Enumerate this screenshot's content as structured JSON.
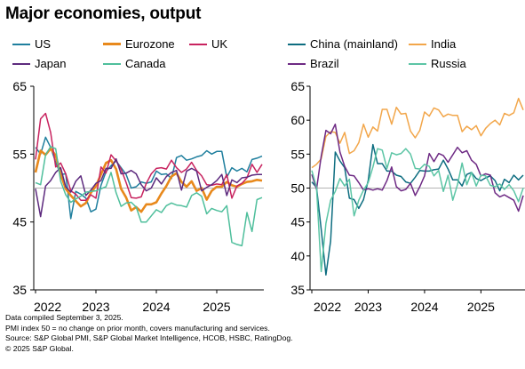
{
  "title": "Major economies,  output",
  "colors": {
    "US": "#1f7f9e",
    "Eurozone": "#e8891c",
    "UK": "#c8235f",
    "Japan": "#5d2a7e",
    "Canada": "#4fbf9c",
    "China (mainland)": "#0d6d80",
    "India": "#f2a64a",
    "Brazil": "#6e2a84",
    "Russia": "#5cc5a5"
  },
  "legend_left": [
    {
      "name": "US"
    },
    {
      "name": "Eurozone"
    },
    {
      "name": "UK"
    },
    {
      "name": "Japan"
    },
    {
      "name": "Canada"
    }
  ],
  "legend_right": [
    {
      "name": "China (mainland)"
    },
    {
      "name": "India"
    },
    {
      "name": "Brazil"
    },
    {
      "name": "Russia"
    }
  ],
  "footer": {
    "line1": "Data compiled September 3, 2025.",
    "line2": "PMI index 50 = no change on prior month, covers manufacturing and services.",
    "line3": "Source: S&P Global PMI, S&P Global Market Intelligence, HCOB, HSBC, RatingDog.",
    "line4": "© 2025 S&P Global."
  },
  "chart_data": [
    {
      "type": "line",
      "title": "",
      "xlabel": "",
      "ylabel": "",
      "ylim": [
        35,
        65
      ],
      "yticks": [
        35,
        45,
        55,
        65
      ],
      "xticks": [
        "2022",
        "2023",
        "2024",
        "2025"
      ],
      "xstart": 2022.0,
      "xend": 2025.667,
      "series": [
        {
          "name": "US",
          "values": [
            56,
            55,
            57.5,
            56,
            53.8,
            52,
            52.1,
            45.5,
            49.5,
            49.1,
            48.5,
            46.5,
            46.9,
            50.4,
            52.4,
            53.3,
            54,
            53,
            52,
            50,
            50.2,
            50.9,
            50.7,
            50.9,
            52.5,
            52,
            52.1,
            51.4,
            54.5,
            54.8,
            54.1,
            54.3,
            54.6,
            54.8,
            55.5,
            55,
            55.4,
            55.4,
            51.6,
            53,
            52.5,
            52.9,
            52.4,
            54.2,
            54.4,
            54.7
          ]
        },
        {
          "name": "Eurozone",
          "values": [
            52.3,
            55.5,
            54.9,
            55.8,
            54.8,
            52,
            49.9,
            48.9,
            48.1,
            47.3,
            47.8,
            49.3,
            50.3,
            52,
            53.7,
            54.1,
            52.8,
            49.9,
            48.6,
            46.7,
            47.2,
            46.5,
            47.6,
            47.6,
            47.9,
            49.2,
            50.3,
            51.7,
            52.2,
            50.9,
            50.2,
            51,
            49.6,
            50,
            48.3,
            49.6,
            50.2,
            50.2,
            50.9,
            50.4,
            50.2,
            50.6,
            50.9,
            51,
            51.2,
            51.1
          ]
        },
        {
          "name": "UK",
          "values": [
            54.2,
            60.2,
            61,
            58.2,
            53.1,
            53.7,
            52.1,
            49.6,
            49.1,
            48.2,
            48.2,
            49,
            48.5,
            53.1,
            52.2,
            54.9,
            54,
            52.8,
            50.8,
            48.6,
            48.5,
            48.7,
            50.7,
            52.1,
            52.9,
            53,
            52.8,
            54.1,
            53,
            52.3,
            52.8,
            53.8,
            52.6,
            51.8,
            50.5,
            50.4,
            50.6,
            50.5,
            52,
            48.5,
            50.3,
            50.7,
            51.5,
            53.5,
            52.3,
            53.5
          ]
        },
        {
          "name": "Japan",
          "values": [
            49.9,
            45.8,
            50.3,
            51.1,
            52.3,
            53,
            50.2,
            49.4,
            51,
            51.8,
            48.9,
            49.7,
            50.7,
            51.1,
            52.9,
            52.9,
            54.3,
            52.1,
            52.2,
            52.6,
            52.1,
            50.5,
            49.6,
            50,
            51.5,
            50.6,
            51.7,
            52.3,
            52.6,
            49.7,
            52.5,
            52.9,
            52.5,
            49.6,
            50.1,
            50.5,
            51.1,
            52,
            48.9,
            51.2,
            50.8,
            51.5,
            51.6,
            51.9,
            52,
            52
          ]
        },
        {
          "name": "Canada",
          "values": [
            50.8,
            50.5,
            54.9,
            56.1,
            55.8,
            51,
            49,
            47.9,
            48.4,
            48.8,
            49.4,
            49.5,
            49.6,
            49.9,
            50.2,
            52.3,
            49.3,
            47.3,
            47.8,
            47.9,
            47.2,
            45,
            45,
            45.9,
            46.8,
            46.4,
            47.4,
            47.8,
            47.5,
            47.4,
            47.2,
            48.9,
            49.3,
            48.8,
            46.2,
            47,
            46.7,
            46.5,
            47.4,
            42,
            41.7,
            41.5,
            46.4,
            43.6,
            48.3,
            48.6
          ]
        }
      ]
    },
    {
      "type": "line",
      "title": "",
      "xlabel": "",
      "ylabel": "",
      "ylim": [
        35,
        65
      ],
      "yticks": [
        35,
        40,
        45,
        50,
        55,
        60,
        65
      ],
      "xticks": [
        "2022",
        "2023",
        "2024",
        "2025"
      ],
      "xstart": 2022.0,
      "xend": 2025.667,
      "series": [
        {
          "name": "China (mainland)",
          "values": [
            50.9,
            50.1,
            43.9,
            37.2,
            42.2,
            55.3,
            54,
            53,
            48.5,
            48.3,
            47,
            48.3,
            51.1,
            56.4,
            53.6,
            53.6,
            52.5,
            52.5,
            51.9,
            51.7,
            50.9,
            50.7,
            51.6,
            52.6,
            52.5,
            52.5,
            52.7,
            52.8,
            54.1,
            52.8,
            51.2,
            51.2,
            50.3,
            52,
            52.3,
            51.4,
            51.1,
            51.5,
            51.8,
            51.1,
            49.6,
            51.3,
            50.8,
            51.9,
            51.2,
            51.9
          ]
        },
        {
          "name": "India",
          "values": [
            53,
            53.5,
            54.3,
            57.6,
            58.3,
            58.2,
            56.6,
            58.2,
            55.1,
            55.5,
            56.7,
            59.4,
            57.5,
            59,
            58.4,
            61.6,
            61.6,
            59.4,
            61.9,
            60.9,
            61,
            58.4,
            57.4,
            58.5,
            61.2,
            60.6,
            61.8,
            61.5,
            60.5,
            60.9,
            60.7,
            60.7,
            58.3,
            59.1,
            58.6,
            59.2,
            57.7,
            58.8,
            59.5,
            60,
            59.3,
            61,
            60.7,
            61.1,
            63.2,
            61.5
          ]
        },
        {
          "name": "Brazil",
          "values": [
            52,
            49.8,
            54.7,
            58.5,
            58,
            59.4,
            55.3,
            53.2,
            51.9,
            51.8,
            50.8,
            49.7,
            49.9,
            49.7,
            49.9,
            49.7,
            51.1,
            53.1,
            50.2,
            49.6,
            49.8,
            50.7,
            48.9,
            50.2,
            51.8,
            55.1,
            53.9,
            55.1,
            54.8,
            53.8,
            54.9,
            56,
            55.2,
            55.5,
            54.1,
            53.5,
            51.8,
            52.1,
            51.9,
            49.3,
            48.7,
            49,
            48.6,
            48.2,
            46.6,
            48.9
          ]
        },
        {
          "name": "Russia",
          "values": [
            52.6,
            50.1,
            37.7,
            44.8,
            48.2,
            49.5,
            51.4,
            50.3,
            51.3,
            45.9,
            48.2,
            49.7,
            50.8,
            53.1,
            55.8,
            55.6,
            52.9,
            55.2,
            54.9,
            55.1,
            55.8,
            55,
            52.9,
            52.8,
            53.5,
            53.2,
            51.8,
            52.6,
            49.5,
            51.9,
            48.2,
            50.5,
            53.7,
            50.5,
            52.3,
            50.3,
            51.9,
            51.8,
            50.4,
            50.2,
            50.6,
            49.8,
            50.5,
            49.6,
            48,
            50
          ]
        }
      ]
    }
  ]
}
